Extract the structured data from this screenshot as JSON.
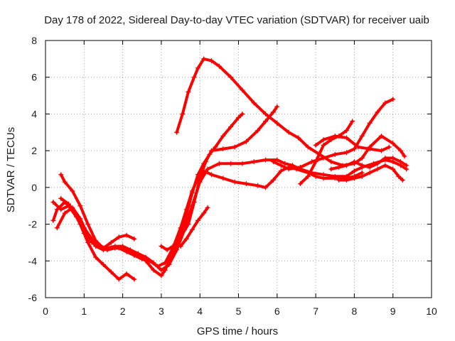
{
  "chart_data": {
    "type": "scatter",
    "title": "Day 178 of 2022, Sidereal Day-to-day VTEC variation (SDTVAR) for receiver uaib",
    "xlabel": "GPS time / hours",
    "ylabel": "SDTVAR / TECUs",
    "xlim": [
      0,
      10
    ],
    "ylim": [
      -6,
      8
    ],
    "xticks": [
      "0",
      "1",
      "2",
      "3",
      "4",
      "5",
      "6",
      "7",
      "8",
      "9",
      "10"
    ],
    "yticks": [
      "-6",
      "-4",
      "-2",
      "0",
      "2",
      "4",
      "6",
      "8"
    ],
    "grid": true,
    "legend": "none",
    "marker": "plus",
    "color": "#ff0000",
    "series": [
      {
        "x": [
          3.4,
          3.55,
          3.7,
          3.85,
          3.95,
          4.1,
          4.3,
          4.5,
          4.8,
          5.1,
          5.4,
          5.7,
          6.0,
          6.3,
          6.55
        ],
        "y": [
          3.0,
          4.0,
          5.2,
          6.0,
          6.5,
          7.0,
          6.9,
          6.6,
          6.0,
          5.3,
          4.6,
          4.0,
          3.5,
          3.0,
          2.7
        ]
      },
      {
        "x": [
          6.55,
          6.8,
          7.1,
          7.4,
          7.7,
          8.0,
          8.2,
          8.4,
          8.7,
          9.0,
          9.2,
          9.3
        ],
        "y": [
          2.7,
          2.2,
          1.8,
          1.4,
          1.2,
          1.3,
          1.6,
          2.2,
          2.8,
          2.4,
          2.0,
          1.7
        ]
      },
      {
        "x": [
          0.2,
          0.3,
          0.5,
          0.7,
          0.9,
          1.1,
          1.3,
          1.5,
          1.7,
          1.9,
          2.1,
          2.3
        ],
        "y": [
          -1.8,
          -1.2,
          -0.8,
          -1.2,
          -2.0,
          -3.0,
          -3.8,
          -4.2,
          -4.6,
          -5.0,
          -4.7,
          -5.0
        ]
      },
      {
        "x": [
          0.4,
          0.5,
          0.7,
          0.9,
          1.1,
          1.3,
          1.5,
          1.7,
          1.9,
          2.1,
          2.3
        ],
        "y": [
          0.7,
          0.3,
          -0.2,
          -1.0,
          -2.0,
          -2.9,
          -3.3,
          -3.0,
          -2.7,
          -2.6,
          -2.8
        ]
      },
      {
        "x": [
          0.2,
          0.4,
          0.6,
          0.8,
          1.0,
          1.2,
          1.4,
          1.6,
          1.8,
          2.0,
          2.2,
          2.4,
          2.6,
          2.8,
          3.0,
          3.1,
          3.2,
          3.35,
          3.5,
          3.65,
          3.8,
          3.95,
          4.1,
          4.25,
          4.4,
          4.6,
          4.8,
          5.0,
          5.1
        ],
        "y": [
          -0.8,
          -1.2,
          -1.0,
          -1.6,
          -2.2,
          -2.8,
          -3.2,
          -3.4,
          -3.3,
          -3.3,
          -3.5,
          -3.7,
          -4.0,
          -4.5,
          -4.8,
          -4.5,
          -4.0,
          -3.3,
          -2.5,
          -1.5,
          -0.3,
          0.7,
          1.3,
          1.8,
          2.2,
          2.8,
          3.3,
          3.8,
          4.0
        ]
      },
      {
        "x": [
          0.3,
          0.5,
          0.7,
          0.9,
          1.1,
          1.3,
          1.5,
          1.7,
          1.9,
          2.1,
          2.3,
          2.5,
          2.7,
          2.9,
          3.1,
          3.3,
          3.5,
          3.65,
          3.8,
          3.95,
          4.1,
          4.3,
          4.6,
          4.9,
          5.2,
          5.5,
          5.7,
          5.9,
          6.1,
          6.3,
          6.5,
          6.8,
          7.0,
          7.2,
          7.5,
          7.8,
          8.0,
          8.2
        ],
        "y": [
          -2.2,
          -1.4,
          -1.1,
          -1.7,
          -2.6,
          -3.2,
          -3.4,
          -3.3,
          -3.3,
          -3.5,
          -3.7,
          -3.9,
          -4.0,
          -4.3,
          -4.1,
          -3.3,
          -2.2,
          -1.2,
          -0.2,
          0.5,
          0.9,
          0.7,
          0.5,
          0.3,
          0.2,
          0.1,
          0.0,
          0.4,
          0.9,
          1.1,
          1.0,
          0.8,
          0.6,
          0.5,
          0.5,
          0.5,
          0.6,
          0.8
        ]
      },
      {
        "x": [
          0.4,
          0.6,
          0.8,
          1.0,
          1.2,
          1.4,
          1.6,
          1.8,
          2.0,
          2.2,
          2.4,
          2.6,
          2.8,
          3.0,
          3.2,
          3.4,
          3.6,
          3.8,
          4.0,
          4.2,
          4.5,
          4.8,
          5.1,
          5.4,
          5.7,
          6.0,
          6.2,
          6.4,
          6.6,
          6.9,
          7.2,
          7.5,
          7.8,
          8.0,
          8.2,
          8.5,
          8.8,
          9.0,
          9.2,
          9.35
        ],
        "y": [
          -0.6,
          -0.9,
          -1.5,
          -2.5,
          -3.0,
          -3.2,
          -3.3,
          -3.2,
          -3.2,
          -3.4,
          -3.6,
          -3.8,
          -4.1,
          -4.5,
          -4.2,
          -3.4,
          -2.3,
          -1.0,
          0.3,
          1.0,
          1.3,
          1.3,
          1.3,
          1.4,
          1.5,
          1.5,
          1.3,
          1.2,
          1.0,
          0.8,
          0.7,
          0.6,
          0.6,
          0.9,
          1.1,
          1.3,
          1.5,
          1.4,
          1.2,
          1.0
        ]
      },
      {
        "x": [
          3.5,
          3.65,
          3.8,
          3.95,
          4.1,
          4.2
        ],
        "y": [
          -3.2,
          -2.8,
          -2.3,
          -1.8,
          -1.4,
          -1.1
        ]
      },
      {
        "x": [
          3.0,
          3.15,
          3.3,
          3.5,
          3.7,
          3.85,
          4.0,
          4.15,
          4.3,
          4.6,
          4.9,
          5.2,
          5.5,
          5.7,
          5.9,
          6.0
        ],
        "y": [
          -3.2,
          -3.4,
          -3.2,
          -2.7,
          -2.0,
          -0.8,
          0.5,
          1.4,
          2.0,
          2.1,
          2.2,
          2.5,
          3.1,
          3.6,
          4.1,
          4.4
        ]
      },
      {
        "x": [
          5.9,
          6.1,
          6.3,
          6.6,
          6.9,
          7.2,
          7.5,
          7.8,
          8.0,
          8.2,
          8.4,
          8.6,
          8.8,
          9.0
        ],
        "y": [
          1.4,
          1.2,
          1.0,
          1.1,
          1.4,
          1.6,
          1.8,
          1.9,
          2.1,
          2.8,
          3.5,
          4.1,
          4.6,
          4.8
        ]
      },
      {
        "x": [
          6.6,
          6.8,
          7.0,
          7.2,
          7.4,
          7.6,
          7.8,
          7.95
        ],
        "y": [
          0.2,
          0.6,
          1.4,
          2.3,
          2.6,
          2.8,
          3.1,
          3.6
        ]
      },
      {
        "x": [
          7.0,
          7.2,
          7.5,
          7.8,
          8.1,
          8.4,
          8.7,
          8.9
        ],
        "y": [
          2.3,
          2.6,
          2.8,
          2.7,
          2.2,
          2.1,
          2.0,
          2.2
        ]
      },
      {
        "x": [
          7.4,
          7.6,
          7.8,
          8.0,
          8.2,
          8.4,
          8.6,
          8.8,
          9.0,
          9.2,
          9.35
        ],
        "y": [
          1.0,
          1.1,
          1.2,
          1.4,
          1.2,
          1.1,
          1.3,
          1.6,
          1.6,
          1.4,
          1.2
        ]
      },
      {
        "x": [
          7.6,
          7.8,
          8.0,
          8.2,
          8.4,
          8.6,
          8.8,
          9.0,
          9.15,
          9.25
        ],
        "y": [
          0.4,
          0.4,
          0.5,
          0.6,
          0.8,
          1.0,
          1.2,
          1.0,
          0.6,
          0.4
        ]
      }
    ]
  }
}
